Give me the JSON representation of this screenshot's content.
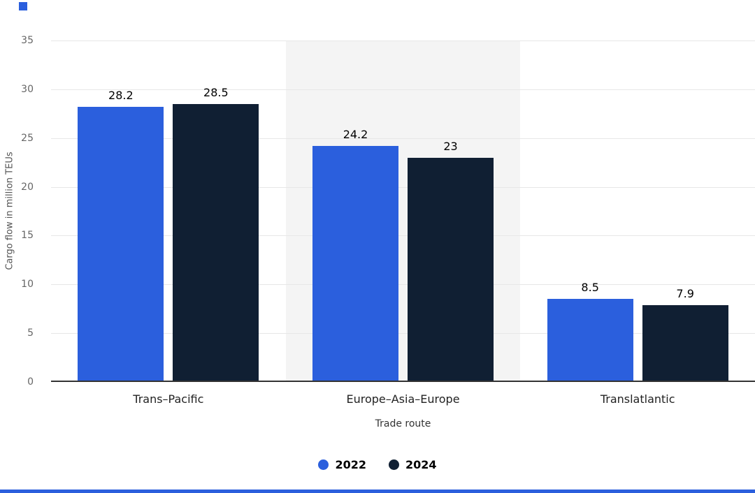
{
  "accent_color": "#2b5fdd",
  "chart_data": {
    "type": "bar",
    "categories": [
      "Trans–Pacific",
      "Europe–Asia–Europe",
      "Translatlantic"
    ],
    "series": [
      {
        "name": "2022",
        "color": "#2b5fdd",
        "values": [
          28.2,
          24.2,
          8.5
        ]
      },
      {
        "name": "2024",
        "color": "#101f33",
        "values": [
          28.5,
          23,
          7.9
        ]
      }
    ],
    "ylabel": "Cargo flow in million TEUs",
    "xlabel": "Trade route",
    "ylim": [
      0,
      35
    ],
    "yticks": [
      0,
      5,
      10,
      15,
      20,
      25,
      30,
      35
    ],
    "grid": true,
    "legend_position": "bottom",
    "band_color": "#f4f4f4",
    "banded_categories": [
      1
    ],
    "gridline_color": "#e7e7e7",
    "baseline_color": "#333333"
  }
}
